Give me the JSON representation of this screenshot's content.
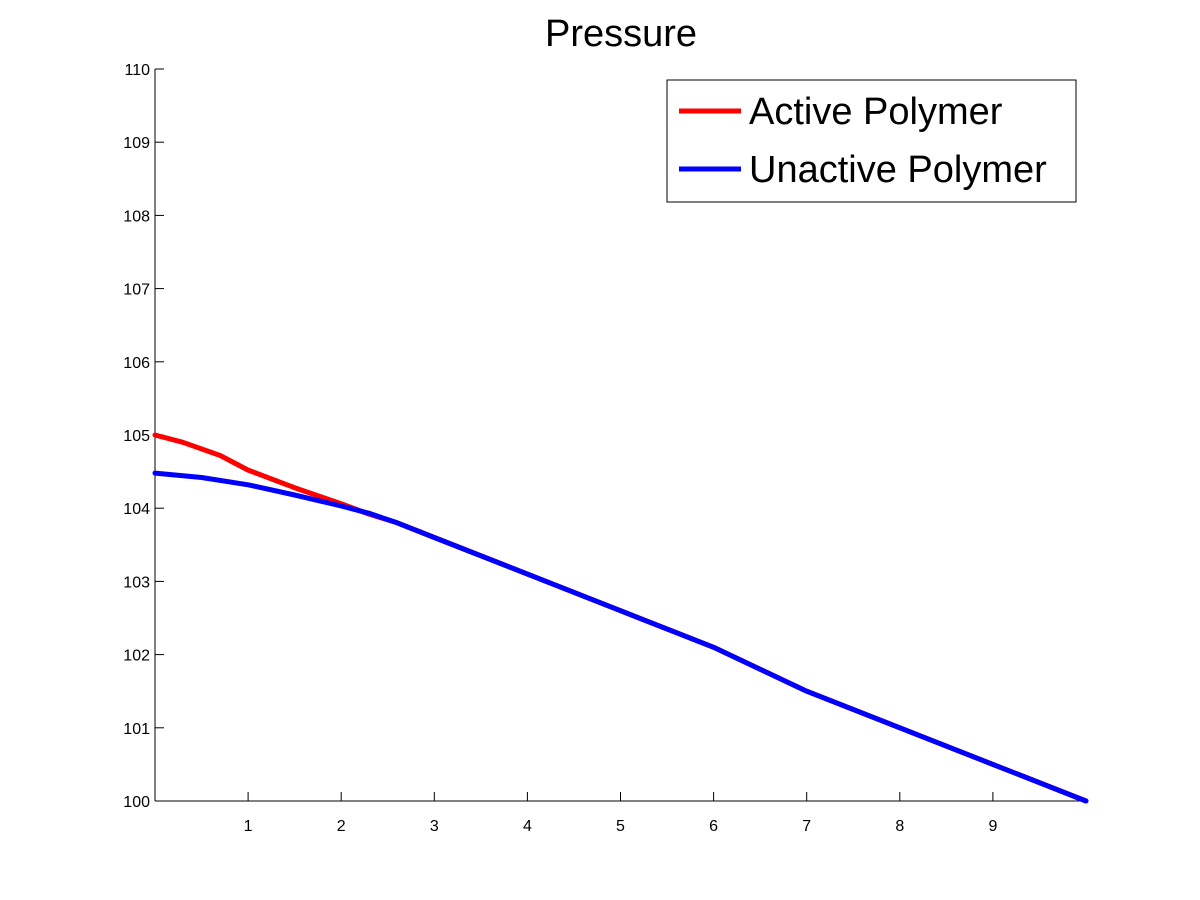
{
  "chart_data": {
    "type": "line",
    "title": "Pressure",
    "xlabel": "",
    "ylabel": "",
    "xlim": [
      0,
      10
    ],
    "ylim": [
      100,
      110
    ],
    "xticks": [
      1,
      2,
      3,
      4,
      5,
      6,
      7,
      8,
      9
    ],
    "xtick_labels": [
      "1",
      "2",
      "3",
      "4",
      "5",
      "6",
      "7",
      "8",
      "9"
    ],
    "yticks": [
      100,
      101,
      102,
      103,
      104,
      105,
      106,
      107,
      108,
      109,
      110
    ],
    "ytick_labels": [
      "100",
      "101",
      "102",
      "103",
      "104",
      "105",
      "106",
      "107",
      "108",
      "109",
      "110"
    ],
    "grid": false,
    "legend_position": "top-right",
    "series": [
      {
        "name": "Active Polymer",
        "color": "#ff0000",
        "x": [
          0,
          0.3,
          0.7,
          1.0,
          1.5,
          2.0,
          2.3,
          2.6,
          3,
          4,
          5,
          6,
          7,
          8,
          9,
          10
        ],
        "y": [
          105.0,
          104.9,
          104.72,
          104.52,
          104.28,
          104.06,
          103.92,
          103.8,
          103.6,
          103.1,
          102.6,
          102.1,
          101.5,
          101.0,
          100.5,
          100.0
        ]
      },
      {
        "name": "Unactive Polymer",
        "color": "#0000ff",
        "x": [
          0,
          0.5,
          1.0,
          1.5,
          2.0,
          2.3,
          2.6,
          3,
          4,
          5,
          6,
          7,
          8,
          9,
          10
        ],
        "y": [
          104.48,
          104.42,
          104.32,
          104.18,
          104.03,
          103.93,
          103.8,
          103.6,
          103.1,
          102.6,
          102.1,
          101.5,
          101.0,
          100.5,
          100.0
        ]
      }
    ]
  }
}
